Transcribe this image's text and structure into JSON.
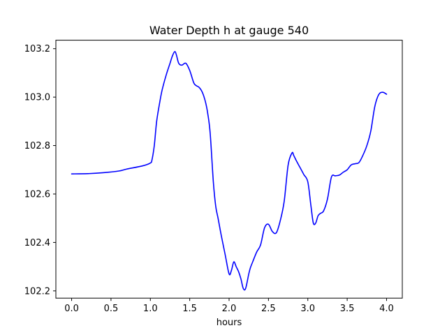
{
  "chart_data": {
    "type": "line",
    "title": "Water Depth h at gauge 540",
    "xlabel": "hours",
    "ylabel": "",
    "xlim": [
      -0.2,
      4.2
    ],
    "ylim": [
      102.17,
      103.235
    ],
    "xticks": [
      0.0,
      0.5,
      1.0,
      1.5,
      2.0,
      2.5,
      3.0,
      3.5,
      4.0
    ],
    "xtick_labels": [
      "0.0",
      "0.5",
      "1.0",
      "1.5",
      "2.0",
      "2.5",
      "3.0",
      "3.5",
      "4.0"
    ],
    "yticks": [
      102.2,
      102.4,
      102.6,
      102.8,
      103.0,
      103.2
    ],
    "ytick_labels": [
      "102.2",
      "102.4",
      "102.6",
      "102.8",
      "103.0",
      "103.2"
    ],
    "grid": false,
    "line_color": "#0000ff",
    "series": [
      {
        "x": [
          0.0,
          0.2,
          0.4,
          0.6,
          0.7,
          0.9,
          1.0,
          1.02,
          1.05,
          1.08,
          1.12,
          1.15,
          1.2,
          1.25,
          1.28,
          1.31,
          1.33,
          1.36,
          1.4,
          1.45,
          1.5,
          1.55,
          1.58,
          1.62,
          1.66,
          1.7,
          1.73,
          1.76,
          1.8,
          1.83,
          1.86,
          1.9,
          1.95,
          2.0,
          2.03,
          2.06,
          2.09,
          2.12,
          2.15,
          2.18,
          2.21,
          2.25,
          2.27,
          2.3,
          2.35,
          2.4,
          2.45,
          2.5,
          2.55,
          2.6,
          2.65,
          2.7,
          2.75,
          2.8,
          2.82,
          2.85,
          2.9,
          2.95,
          3.0,
          3.04,
          3.07,
          3.1,
          3.13,
          3.16,
          3.2,
          3.25,
          3.3,
          3.35,
          3.4,
          3.45,
          3.5,
          3.55,
          3.6,
          3.65,
          3.7,
          3.75,
          3.8,
          3.85,
          3.9,
          3.95,
          4.0
        ],
        "y": [
          102.683,
          102.684,
          102.688,
          102.695,
          102.703,
          102.716,
          102.728,
          102.74,
          102.8,
          102.9,
          102.98,
          103.03,
          103.09,
          103.14,
          103.17,
          103.188,
          103.175,
          103.14,
          103.132,
          103.14,
          103.11,
          103.06,
          103.048,
          103.04,
          103.02,
          102.98,
          102.93,
          102.85,
          102.65,
          102.55,
          102.5,
          102.43,
          102.35,
          102.27,
          102.285,
          102.32,
          102.3,
          102.28,
          102.25,
          102.21,
          102.21,
          102.27,
          102.295,
          102.32,
          102.36,
          102.39,
          102.46,
          102.475,
          102.445,
          102.44,
          102.49,
          102.57,
          102.72,
          102.77,
          102.76,
          102.74,
          102.71,
          102.68,
          102.65,
          102.55,
          102.48,
          102.48,
          102.51,
          102.52,
          102.53,
          102.58,
          102.67,
          102.675,
          102.678,
          102.69,
          102.7,
          102.72,
          102.725,
          102.73,
          102.76,
          102.8,
          102.86,
          102.96,
          103.01,
          103.02,
          103.012
        ]
      }
    ]
  }
}
